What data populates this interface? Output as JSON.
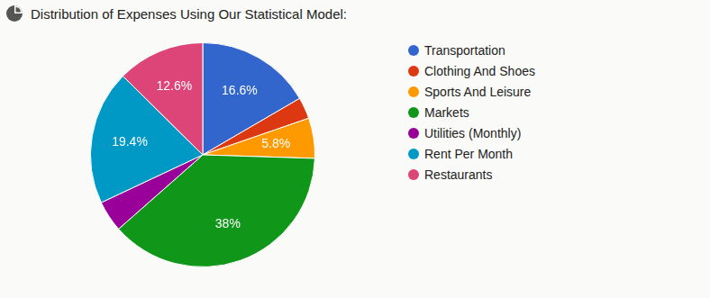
{
  "chart_data": {
    "type": "pie",
    "title": "Distribution of Expenses Using Our Statistical Model:",
    "categories": [
      "Transportation",
      "Clothing And Shoes",
      "Sports And Leisure",
      "Markets",
      "Utilities (Monthly)",
      "Rent Per Month",
      "Restaurants"
    ],
    "values": [
      16.6,
      3.1,
      5.8,
      38,
      4.5,
      19.4,
      12.6
    ],
    "value_labels": [
      "16.6%",
      null,
      "5.8%",
      "38%",
      null,
      "19.4%",
      "12.6%"
    ],
    "colors": [
      "#3366cc",
      "#dc3912",
      "#ff9900",
      "#109618",
      "#990099",
      "#0099c6",
      "#dd4477"
    ],
    "data_labels": true,
    "legend": "right"
  }
}
